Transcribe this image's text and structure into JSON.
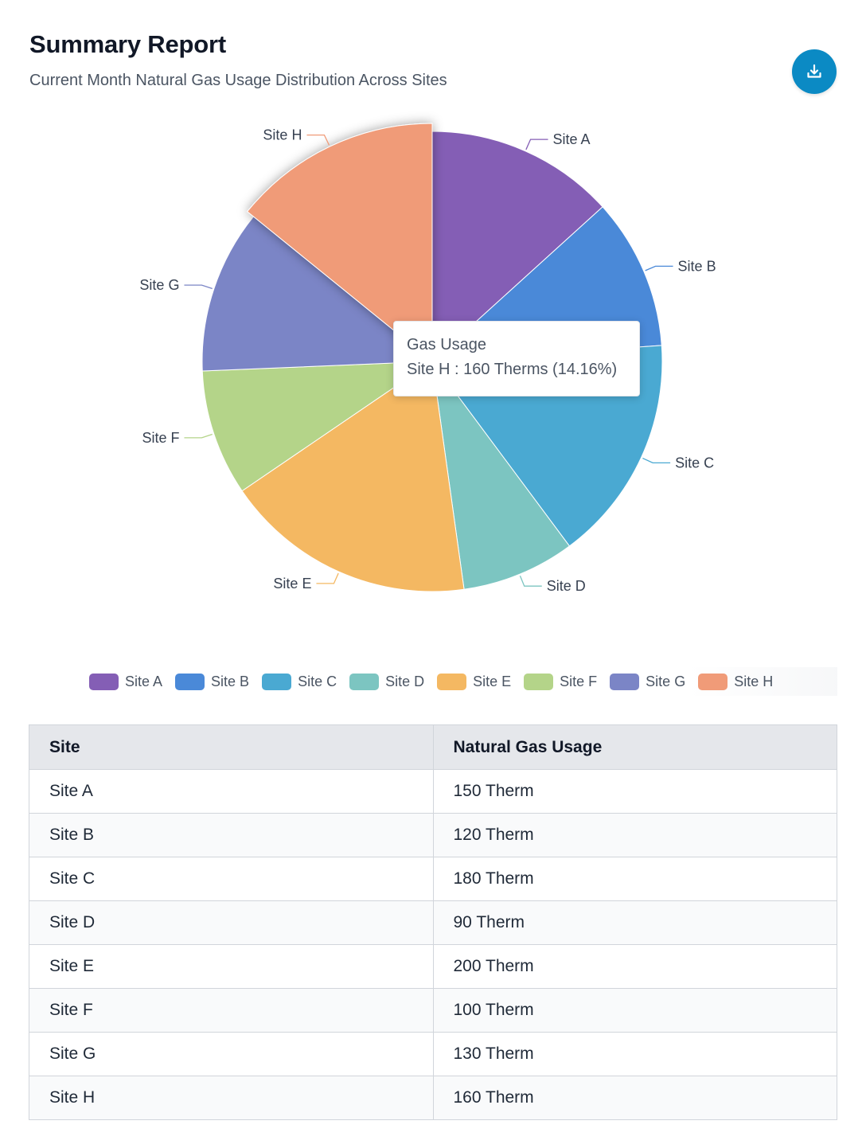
{
  "header": {
    "title": "Summary Report",
    "subtitle": "Current Month Natural Gas Usage Distribution Across Sites",
    "download_icon": "download-icon"
  },
  "chart_data": {
    "type": "pie",
    "series_name": "Gas Usage",
    "unit": "Therms",
    "categories": [
      "Site A",
      "Site B",
      "Site C",
      "Site D",
      "Site E",
      "Site F",
      "Site G",
      "Site H"
    ],
    "values": [
      150,
      120,
      180,
      90,
      200,
      100,
      130,
      160
    ],
    "colors": [
      "#845eb5",
      "#4a89d8",
      "#4aa9d2",
      "#7cc5c1",
      "#f4b862",
      "#b4d489",
      "#7b85c6",
      "#f09b78"
    ],
    "highlighted": "Site H",
    "legend_position": "bottom"
  },
  "tooltip": {
    "title": "Gas Usage",
    "text": "Site H : 160 Therms (14.16%)"
  },
  "table": {
    "headers": [
      "Site",
      "Natural Gas Usage"
    ],
    "rows": [
      [
        "Site A",
        "150 Therm"
      ],
      [
        "Site B",
        "120 Therm"
      ],
      [
        "Site C",
        "180 Therm"
      ],
      [
        "Site D",
        "90 Therm"
      ],
      [
        "Site E",
        "200 Therm"
      ],
      [
        "Site F",
        "100 Therm"
      ],
      [
        "Site G",
        "130 Therm"
      ],
      [
        "Site H",
        "160 Therm"
      ]
    ]
  }
}
